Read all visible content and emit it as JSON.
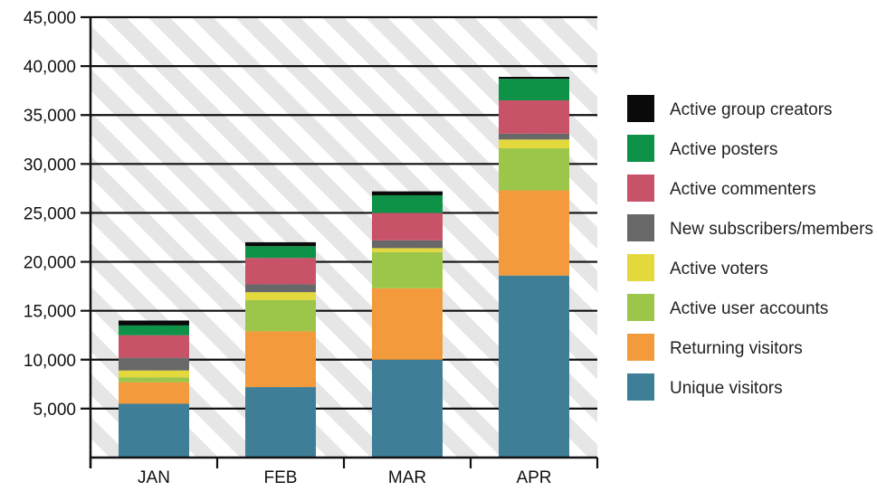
{
  "chart_data": {
    "type": "bar",
    "stacked": true,
    "categories": [
      "JAN",
      "FEB",
      "MAR",
      "APR"
    ],
    "ylim": [
      0,
      45000
    ],
    "yticks": [
      5000,
      10000,
      15000,
      20000,
      25000,
      30000,
      35000,
      40000,
      45000
    ],
    "ytick_labels": [
      "5,000",
      "10,000",
      "15,000",
      "20,000",
      "25,000",
      "30,000",
      "35,000",
      "40,000",
      "45,000"
    ],
    "grid": true,
    "background": "diagonal-stripes",
    "legend_position": "right",
    "series": [
      {
        "name": "Unique visitors",
        "color": "#3e7f97",
        "values": [
          5500,
          7200,
          10000,
          18600
        ]
      },
      {
        "name": "Returning visitors",
        "color": "#f39a3c",
        "values": [
          2200,
          5700,
          7300,
          8700
        ]
      },
      {
        "name": "Active user accounts",
        "color": "#9cc64a",
        "values": [
          500,
          3200,
          3700,
          4300
        ]
      },
      {
        "name": "Active voters",
        "color": "#e3d83c",
        "values": [
          700,
          800,
          400,
          900
        ]
      },
      {
        "name": "New subscribers/members",
        "color": "#686868",
        "values": [
          1300,
          800,
          800,
          600
        ]
      },
      {
        "name": "Active commenters",
        "color": "#c85268",
        "values": [
          2300,
          2700,
          2800,
          3400
        ]
      },
      {
        "name": "Active posters",
        "color": "#0e9248",
        "values": [
          1000,
          1200,
          1800,
          2200
        ]
      },
      {
        "name": "Active group creators",
        "color": "#0a0a0a",
        "values": [
          500,
          400,
          400,
          200
        ]
      }
    ]
  }
}
